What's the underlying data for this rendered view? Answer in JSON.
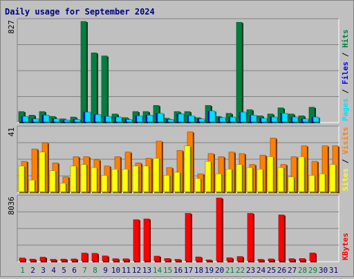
{
  "chart_data": {
    "type": "bar",
    "title": "Daily usage for September 2024",
    "categories": [
      "1",
      "2",
      "3",
      "4",
      "5",
      "6",
      "7",
      "8",
      "9",
      "10",
      "11",
      "12",
      "13",
      "14",
      "15",
      "16",
      "17",
      "18",
      "19",
      "20",
      "21",
      "22",
      "23",
      "24",
      "25",
      "26",
      "27",
      "28",
      "29",
      "30",
      "31"
    ],
    "weekend_days": [
      "1",
      "7",
      "8",
      "14",
      "15",
      "21",
      "22",
      "28",
      "29"
    ],
    "panels": [
      {
        "name": "hits-files-pages",
        "y_max_label": "827",
        "ylim": [
          0,
          827
        ],
        "right_labels": [
          "Pages",
          "Files",
          "Hits"
        ],
        "series": [
          {
            "name": "Hits",
            "color": "#008040",
            "values": [
              90,
              60,
              90,
              50,
              30,
              45,
              827,
              570,
              545,
              70,
              40,
              90,
              90,
              140,
              35,
              90,
              90,
              40,
              140,
              50,
              75,
              820,
              105,
              55,
              70,
              120,
              70,
              55,
              125,
              0,
              0
            ]
          },
          {
            "name": "Files",
            "color": "#0000ff",
            "values": [
              50,
              30,
              60,
              30,
              20,
              25,
              85,
              65,
              50,
              45,
              25,
              55,
              60,
              75,
              25,
              70,
              55,
              30,
              95,
              40,
              45,
              85,
              60,
              35,
              45,
              75,
              45,
              30,
              45,
              0,
              0
            ]
          },
          {
            "name": "Pages",
            "color": "#00e0ff",
            "values": [
              50,
              30,
              60,
              30,
              20,
              25,
              85,
              65,
              50,
              45,
              25,
              55,
              60,
              75,
              25,
              70,
              55,
              30,
              95,
              40,
              45,
              85,
              60,
              35,
              45,
              75,
              45,
              30,
              45,
              0,
              0
            ]
          }
        ]
      },
      {
        "name": "visits-sites",
        "y_max_label": "41",
        "ylim": [
          0,
          41
        ],
        "right_labels": [
          "Sites",
          "Visits"
        ],
        "series": [
          {
            "name": "Visits",
            "color": "#ff8000",
            "values": [
              20,
              28,
              32,
              19,
              10,
              23,
              23,
              21,
              17,
              23,
              26,
              19,
              22,
              33,
              16,
              27,
              39,
              12,
              25,
              23,
              26,
              25,
              18,
              24,
              35,
              18,
              23,
              30,
              20,
              30,
              30
            ]
          },
          {
            "name": "Sites",
            "color": "#ffff00",
            "values": [
              17,
              8,
              26,
              14,
              6,
              17,
              18,
              16,
              11,
              15,
              15,
              17,
              17,
              22,
              11,
              13,
              30,
              9,
              20,
              12,
              15,
              18,
              16,
              15,
              23,
              16,
              10,
              23,
              11,
              12,
              18
            ]
          }
        ]
      },
      {
        "name": "kbytes",
        "y_max_label": "8036",
        "ylim": [
          0,
          8036
        ],
        "right_labels": [
          "KBytes"
        ],
        "series": [
          {
            "name": "KBytes",
            "color": "#ff0000",
            "values": [
              470,
              330,
              570,
              300,
              330,
              350,
              1090,
              1060,
              730,
              380,
              370,
              5300,
              5400,
              700,
              400,
              300,
              6100,
              600,
              230,
              8036,
              500,
              650,
              6100,
              300,
              350,
              5900,
              380,
              400,
              1100,
              0,
              0
            ]
          }
        ]
      }
    ]
  }
}
